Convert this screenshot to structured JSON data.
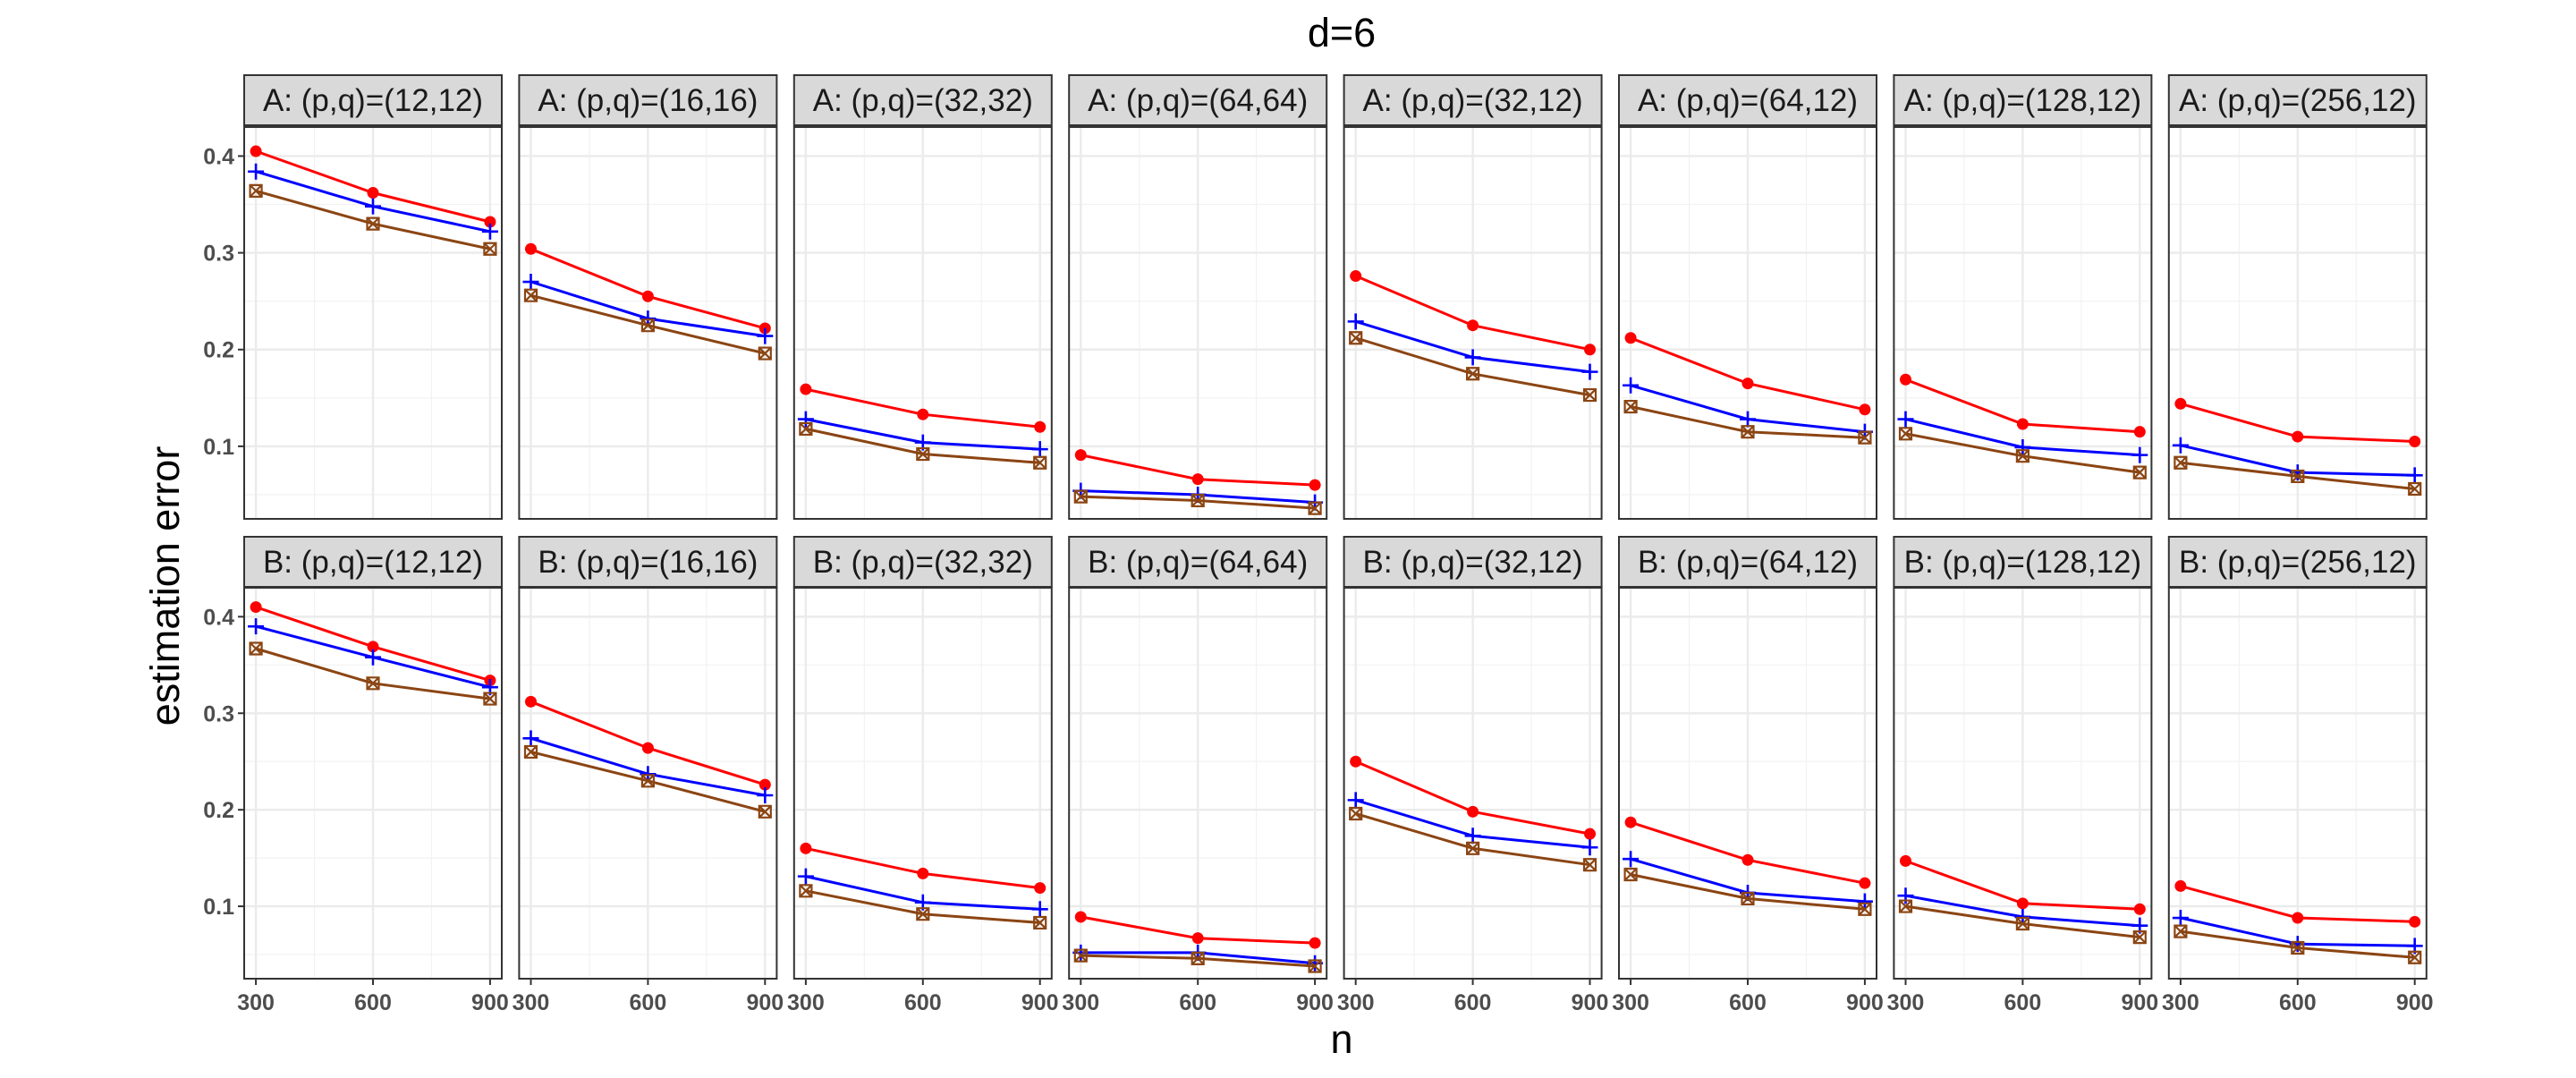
{
  "chart_data": {
    "type": "line",
    "title": "d=6",
    "xlabel": "n",
    "ylabel": "estimation error",
    "x_ticks": [
      300,
      600,
      900
    ],
    "y_ticks": [
      0.1,
      0.2,
      0.3,
      0.4
    ],
    "x_range": [
      270,
      930
    ],
    "y_range": [
      0.025,
      0.43
    ],
    "grid": true,
    "legend": "none",
    "series_styles": [
      {
        "key": "red",
        "color": "#ff0000",
        "marker": "circle"
      },
      {
        "key": "blue",
        "color": "#0000ff",
        "marker": "plus"
      },
      {
        "key": "brown",
        "color": "#8b4513",
        "marker": "boxed-x"
      }
    ],
    "rows": [
      {
        "row": "A",
        "panels": [
          {
            "label": "A: (p,q)=(12,12)",
            "x": [
              300,
              600,
              900
            ],
            "series": [
              {
                "name": "red",
                "values": [
                  0.405,
                  0.362,
                  0.332
                ]
              },
              {
                "name": "blue",
                "values": [
                  0.384,
                  0.348,
                  0.322
                ]
              },
              {
                "name": "brown",
                "values": [
                  0.364,
                  0.33,
                  0.304
                ]
              }
            ]
          },
          {
            "label": "A: (p,q)=(16,16)",
            "x": [
              300,
              600,
              900
            ],
            "series": [
              {
                "name": "red",
                "values": [
                  0.304,
                  0.255,
                  0.222
                ]
              },
              {
                "name": "blue",
                "values": [
                  0.27,
                  0.232,
                  0.214
                ]
              },
              {
                "name": "brown",
                "values": [
                  0.256,
                  0.225,
                  0.196
                ]
              }
            ]
          },
          {
            "label": "A: (p,q)=(32,32)",
            "x": [
              300,
              600,
              900
            ],
            "series": [
              {
                "name": "red",
                "values": [
                  0.159,
                  0.133,
                  0.12
                ]
              },
              {
                "name": "blue",
                "values": [
                  0.128,
                  0.104,
                  0.097
                ]
              },
              {
                "name": "brown",
                "values": [
                  0.118,
                  0.092,
                  0.083
                ]
              }
            ]
          },
          {
            "label": "A: (p,q)=(64,64)",
            "x": [
              300,
              600,
              900
            ],
            "series": [
              {
                "name": "red",
                "values": [
                  0.091,
                  0.066,
                  0.06
                ]
              },
              {
                "name": "blue",
                "values": [
                  0.054,
                  0.05,
                  0.042
                ]
              },
              {
                "name": "brown",
                "values": [
                  0.048,
                  0.044,
                  0.036
                ]
              }
            ]
          },
          {
            "label": "A: (p,q)=(32,12)",
            "x": [
              300,
              600,
              900
            ],
            "series": [
              {
                "name": "red",
                "values": [
                  0.276,
                  0.225,
                  0.2
                ]
              },
              {
                "name": "blue",
                "values": [
                  0.229,
                  0.192,
                  0.177
                ]
              },
              {
                "name": "brown",
                "values": [
                  0.212,
                  0.175,
                  0.153
                ]
              }
            ]
          },
          {
            "label": "A: (p,q)=(64,12)",
            "x": [
              300,
              600,
              900
            ],
            "series": [
              {
                "name": "red",
                "values": [
                  0.212,
                  0.165,
                  0.138
                ]
              },
              {
                "name": "blue",
                "values": [
                  0.163,
                  0.128,
                  0.115
                ]
              },
              {
                "name": "brown",
                "values": [
                  0.141,
                  0.115,
                  0.109
                ]
              }
            ]
          },
          {
            "label": "A: (p,q)=(128,12)",
            "x": [
              300,
              600,
              900
            ],
            "series": [
              {
                "name": "red",
                "values": [
                  0.169,
                  0.123,
                  0.115
                ]
              },
              {
                "name": "blue",
                "values": [
                  0.128,
                  0.099,
                  0.091
                ]
              },
              {
                "name": "brown",
                "values": [
                  0.113,
                  0.09,
                  0.073
                ]
              }
            ]
          },
          {
            "label": "A: (p,q)=(256,12)",
            "x": [
              300,
              600,
              900
            ],
            "series": [
              {
                "name": "red",
                "values": [
                  0.144,
                  0.11,
                  0.105
                ]
              },
              {
                "name": "blue",
                "values": [
                  0.101,
                  0.073,
                  0.07
                ]
              },
              {
                "name": "brown",
                "values": [
                  0.083,
                  0.069,
                  0.056
                ]
              }
            ]
          }
        ]
      },
      {
        "row": "B",
        "panels": [
          {
            "label": "B: (p,q)=(12,12)",
            "x": [
              300,
              600,
              900
            ],
            "series": [
              {
                "name": "red",
                "values": [
                  0.41,
                  0.369,
                  0.334
                ]
              },
              {
                "name": "blue",
                "values": [
                  0.39,
                  0.358,
                  0.327
                ]
              },
              {
                "name": "brown",
                "values": [
                  0.367,
                  0.331,
                  0.315
                ]
              }
            ]
          },
          {
            "label": "B: (p,q)=(16,16)",
            "x": [
              300,
              600,
              900
            ],
            "series": [
              {
                "name": "red",
                "values": [
                  0.312,
                  0.264,
                  0.226
                ]
              },
              {
                "name": "blue",
                "values": [
                  0.274,
                  0.237,
                  0.215
                ]
              },
              {
                "name": "brown",
                "values": [
                  0.26,
                  0.23,
                  0.198
                ]
              }
            ]
          },
          {
            "label": "B: (p,q)=(32,32)",
            "x": [
              300,
              600,
              900
            ],
            "series": [
              {
                "name": "red",
                "values": [
                  0.16,
                  0.134,
                  0.119
                ]
              },
              {
                "name": "blue",
                "values": [
                  0.131,
                  0.104,
                  0.097
                ]
              },
              {
                "name": "brown",
                "values": [
                  0.116,
                  0.092,
                  0.083
                ]
              }
            ]
          },
          {
            "label": "B: (p,q)=(64,64)",
            "x": [
              300,
              600,
              900
            ],
            "series": [
              {
                "name": "red",
                "values": [
                  0.089,
                  0.067,
                  0.062
                ]
              },
              {
                "name": "blue",
                "values": [
                  0.052,
                  0.052,
                  0.041
                ]
              },
              {
                "name": "brown",
                "values": [
                  0.049,
                  0.046,
                  0.038
                ]
              }
            ]
          },
          {
            "label": "B: (p,q)=(32,12)",
            "x": [
              300,
              600,
              900
            ],
            "series": [
              {
                "name": "red",
                "values": [
                  0.25,
                  0.198,
                  0.175
                ]
              },
              {
                "name": "blue",
                "values": [
                  0.21,
                  0.173,
                  0.161
                ]
              },
              {
                "name": "brown",
                "values": [
                  0.196,
                  0.16,
                  0.143
                ]
              }
            ]
          },
          {
            "label": "B: (p,q)=(64,12)",
            "x": [
              300,
              600,
              900
            ],
            "series": [
              {
                "name": "red",
                "values": [
                  0.187,
                  0.148,
                  0.124
                ]
              },
              {
                "name": "blue",
                "values": [
                  0.149,
                  0.114,
                  0.105
                ]
              },
              {
                "name": "brown",
                "values": [
                  0.133,
                  0.108,
                  0.097
                ]
              }
            ]
          },
          {
            "label": "B: (p,q)=(128,12)",
            "x": [
              300,
              600,
              900
            ],
            "series": [
              {
                "name": "red",
                "values": [
                  0.147,
                  0.103,
                  0.097
                ]
              },
              {
                "name": "blue",
                "values": [
                  0.111,
                  0.089,
                  0.08
                ]
              },
              {
                "name": "brown",
                "values": [
                  0.1,
                  0.082,
                  0.068
                ]
              }
            ]
          },
          {
            "label": "B: (p,q)=(256,12)",
            "x": [
              300,
              600,
              900
            ],
            "series": [
              {
                "name": "red",
                "values": [
                  0.121,
                  0.088,
                  0.084
                ]
              },
              {
                "name": "blue",
                "values": [
                  0.088,
                  0.061,
                  0.059
                ]
              },
              {
                "name": "brown",
                "values": [
                  0.074,
                  0.057,
                  0.047
                ]
              }
            ]
          }
        ]
      }
    ]
  }
}
